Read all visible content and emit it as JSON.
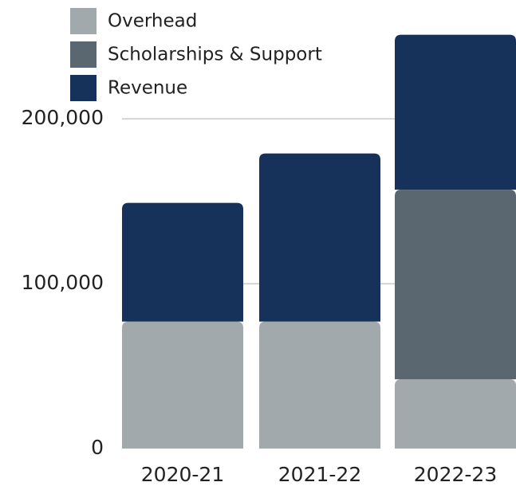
{
  "chart_data": {
    "type": "stacked_bar",
    "categories": [
      "2020-21",
      "2021-22",
      "2022-23"
    ],
    "series": [
      {
        "name": "Overhead",
        "color": "#a2a9ad",
        "values": [
          77000,
          77000,
          42000
        ]
      },
      {
        "name": "Scholarships & Support",
        "color": "#5b6770",
        "values": [
          0,
          0,
          115000
        ]
      },
      {
        "name": "Revenue",
        "color": "#17325a",
        "values": [
          72000,
          102000,
          94000
        ]
      }
    ],
    "ylim": [
      0,
      260000
    ],
    "yticks": [
      0,
      {
        "value": 100000,
        "label": "100,000"
      },
      {
        "value": 200000,
        "label": "200,000"
      }
    ],
    "grid": true,
    "legend": "top-left"
  }
}
